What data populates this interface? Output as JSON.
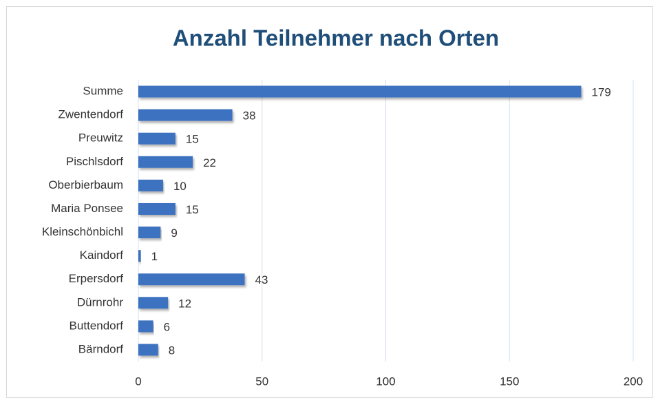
{
  "chart_data": {
    "type": "bar",
    "orientation": "horizontal",
    "title": "Anzahl Teilnehmer nach Orten",
    "categories": [
      "Summe",
      "Zwentendorf",
      "Preuwitz",
      "Pischlsdorf",
      "Oberbierbaum",
      "Maria Ponsee",
      "Kleinschönbichl",
      "Kaindorf",
      "Erpersdorf",
      "Dürnrohr",
      "Buttendorf",
      "Bärndorf"
    ],
    "values": [
      179,
      38,
      15,
      22,
      10,
      15,
      9,
      1,
      43,
      12,
      6,
      8
    ],
    "color": "#3e72c0",
    "xlim": [
      0,
      200
    ],
    "xticks": [
      0,
      50,
      100,
      150,
      200
    ],
    "grid": true
  }
}
